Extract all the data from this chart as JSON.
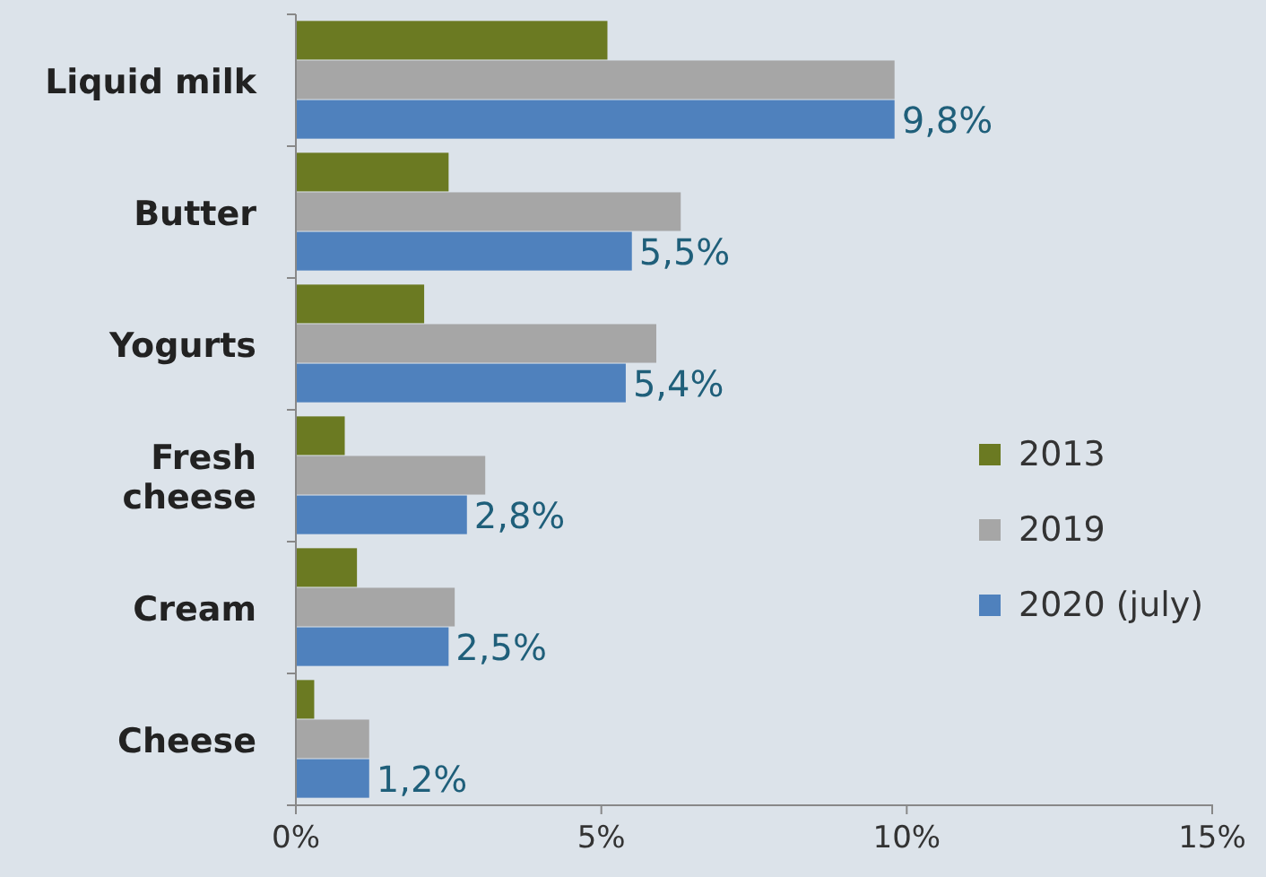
{
  "chart_data": {
    "type": "bar",
    "orientation": "horizontal",
    "categories": [
      "Liquid milk",
      "Butter",
      "Yogurts",
      "Fresh cheese",
      "Cream",
      "Cheese"
    ],
    "series": [
      {
        "name": "2013",
        "color": "#6b7a22",
        "values": [
          5.1,
          2.5,
          2.1,
          0.8,
          1.0,
          0.3
        ]
      },
      {
        "name": "2019",
        "color": "#a6a6a6",
        "values": [
          9.8,
          6.3,
          5.9,
          3.1,
          2.6,
          1.2
        ]
      },
      {
        "name": "2020 (july)",
        "color": "#4f81bd",
        "values": [
          9.8,
          5.5,
          5.4,
          2.8,
          2.5,
          1.2
        ],
        "value_labels": [
          "9,8%",
          "5,5%",
          "5,4%",
          "2,8%",
          "2,5%",
          "1,2%"
        ]
      }
    ],
    "xlim": [
      0,
      15
    ],
    "xticks": [
      {
        "value": 0,
        "label": "0%"
      },
      {
        "value": 5,
        "label": "5%"
      },
      {
        "value": 10,
        "label": "10%"
      },
      {
        "value": 15,
        "label": "15%"
      }
    ],
    "grid": false,
    "legend": "right"
  }
}
